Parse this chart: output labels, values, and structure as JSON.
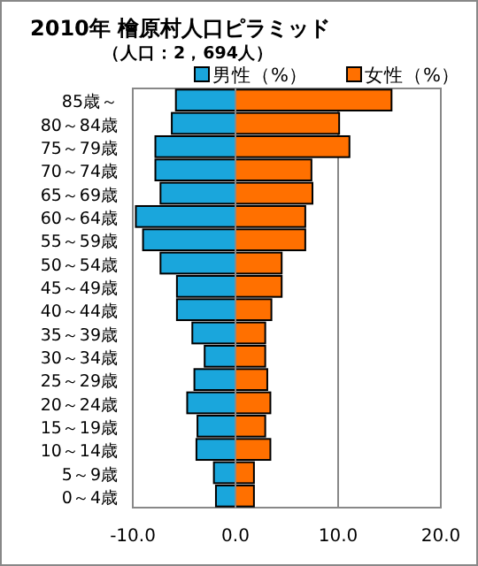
{
  "chart_data": {
    "type": "bar",
    "orientation": "horizontal",
    "title": "2010年 檜原村人口ピラミッド",
    "subtitle": "（人口：2，694人）",
    "categories": [
      "85歳～",
      "80～84歳",
      "75～79歳",
      "70～74歳",
      "65～69歳",
      "60～64歳",
      "55～59歳",
      "50～54歳",
      "45～49歳",
      "40～44歳",
      "35～39歳",
      "30～34歳",
      "25～29歳",
      "20～24歳",
      "15～19歳",
      "10～14歳",
      "5～9歳",
      "0～4歳"
    ],
    "series": [
      {
        "name": "男性（%）",
        "color": "#1aa6dc",
        "values": [
          -5.8,
          -6.2,
          -7.8,
          -7.8,
          -7.3,
          -9.7,
          -9.0,
          -7.3,
          -5.7,
          -5.7,
          -4.2,
          -3.0,
          -4.0,
          -4.7,
          -3.7,
          -3.8,
          -2.1,
          -1.9
        ]
      },
      {
        "name": "女性（%）",
        "color": "#ff7000",
        "values": [
          15.2,
          10.1,
          11.1,
          7.4,
          7.5,
          6.8,
          6.8,
          4.5,
          4.5,
          3.5,
          2.9,
          2.9,
          3.1,
          3.4,
          2.9,
          3.4,
          1.8,
          1.8
        ]
      }
    ],
    "xlim": [
      -10,
      20
    ],
    "xticks": [
      {
        "value": -10,
        "label": "-10.0"
      },
      {
        "value": 0,
        "label": "0.0"
      },
      {
        "value": 10,
        "label": "10.0"
      },
      {
        "value": 20,
        "label": "20.0"
      }
    ],
    "grid": "x",
    "legend": "top",
    "stacked": true
  }
}
